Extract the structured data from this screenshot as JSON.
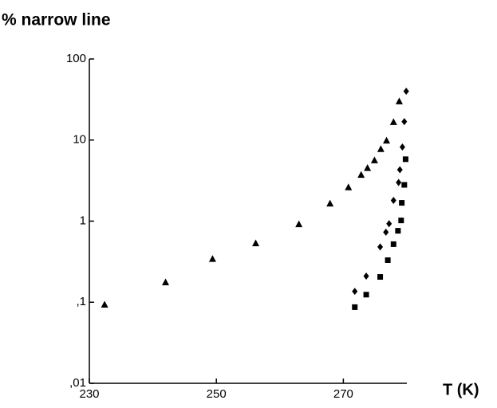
{
  "chart_data": {
    "type": "scatter",
    "title": "% narrow line",
    "xlabel": "T (K)",
    "xlim": [
      230,
      280
    ],
    "xticks": [
      230,
      250,
      270
    ],
    "ylim": [
      0.01,
      100
    ],
    "ylog": true,
    "yticks": [
      {
        "value": 0.01,
        "label": ",01"
      },
      {
        "value": 0.1,
        "label": ",1"
      },
      1,
      10,
      100
    ],
    "series": [
      {
        "marker": "triangle",
        "color": "#000000",
        "x": [
          232.4,
          242.0,
          249.4,
          256.2,
          263.0,
          267.9,
          270.8,
          272.8,
          273.8,
          274.9,
          275.9,
          276.8,
          277.9,
          278.8
        ],
        "values": [
          0.093,
          0.175,
          0.34,
          0.53,
          0.91,
          1.64,
          2.6,
          3.7,
          4.5,
          5.6,
          7.7,
          9.8,
          16.6,
          29.9
        ]
      },
      {
        "marker": "diamond",
        "color": "#000000",
        "x": [
          271.8,
          273.6,
          275.8,
          276.7,
          277.2,
          277.9,
          278.7,
          278.9,
          279.3,
          279.6,
          279.9
        ],
        "values": [
          0.136,
          0.21,
          0.48,
          0.73,
          0.93,
          1.8,
          3.0,
          4.3,
          8.2,
          16.9,
          40
        ]
      },
      {
        "marker": "square",
        "color": "#000000",
        "x": [
          271.8,
          273.6,
          275.8,
          277.0,
          277.9,
          278.6,
          279.1,
          279.2,
          279.6,
          279.8
        ],
        "values": [
          0.087,
          0.124,
          0.205,
          0.33,
          0.52,
          0.76,
          1.02,
          1.68,
          2.8,
          5.8
        ]
      }
    ]
  }
}
